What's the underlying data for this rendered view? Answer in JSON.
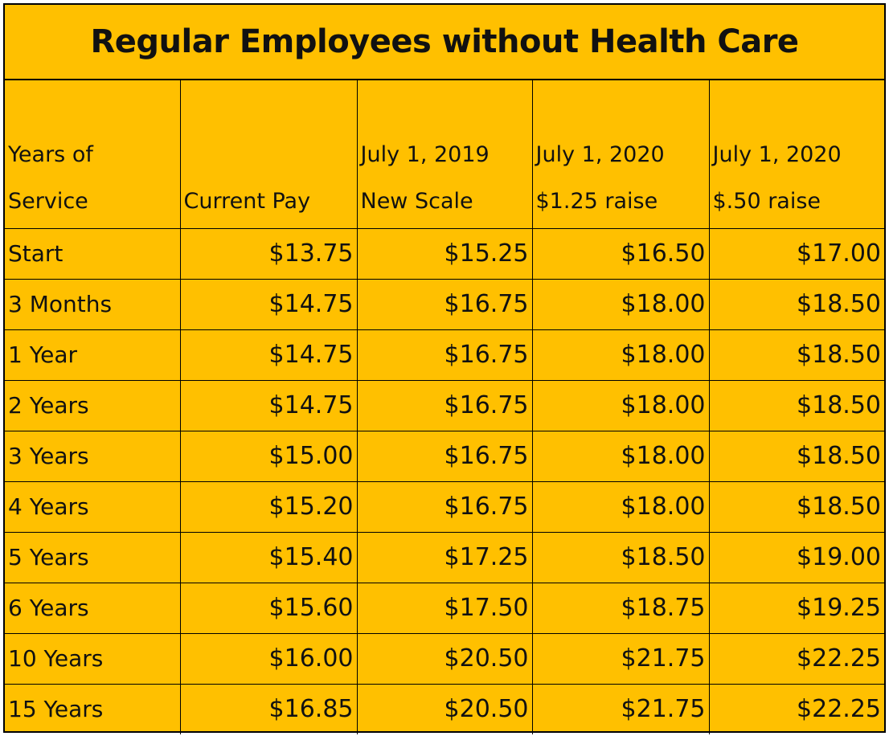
{
  "title": "Regular Employees without Health Care",
  "colors": {
    "background": "#FFC000",
    "text": "#111111",
    "border": "#000000"
  },
  "headers": [
    [
      "Years of",
      "Service"
    ],
    [
      "",
      "Current Pay"
    ],
    [
      "July 1, 2019",
      "New Scale"
    ],
    [
      "July 1, 2020",
      "$1.25 raise"
    ],
    [
      "July 1, 2020",
      "$.50 raise"
    ]
  ],
  "rows": [
    [
      "Start",
      "$13.75",
      "$15.25",
      "$16.50",
      "$17.00"
    ],
    [
      "3 Months",
      "$14.75",
      "$16.75",
      "$18.00",
      "$18.50"
    ],
    [
      "1 Year",
      "$14.75",
      "$16.75",
      "$18.00",
      "$18.50"
    ],
    [
      "2 Years",
      "$14.75",
      "$16.75",
      "$18.00",
      "$18.50"
    ],
    [
      "3 Years",
      "$15.00",
      "$16.75",
      "$18.00",
      "$18.50"
    ],
    [
      "4 Years",
      "$15.20",
      "$16.75",
      "$18.00",
      "$18.50"
    ],
    [
      "5 Years",
      "$15.40",
      "$17.25",
      "$18.50",
      "$19.00"
    ],
    [
      "6 Years",
      "$15.60",
      "$17.50",
      "$18.75",
      "$19.25"
    ],
    [
      "10 Years",
      "$16.00",
      "$20.50",
      "$21.75",
      "$22.25"
    ],
    [
      "15 Years",
      "$16.85",
      "$20.50",
      "$21.75",
      "$22.25"
    ]
  ]
}
